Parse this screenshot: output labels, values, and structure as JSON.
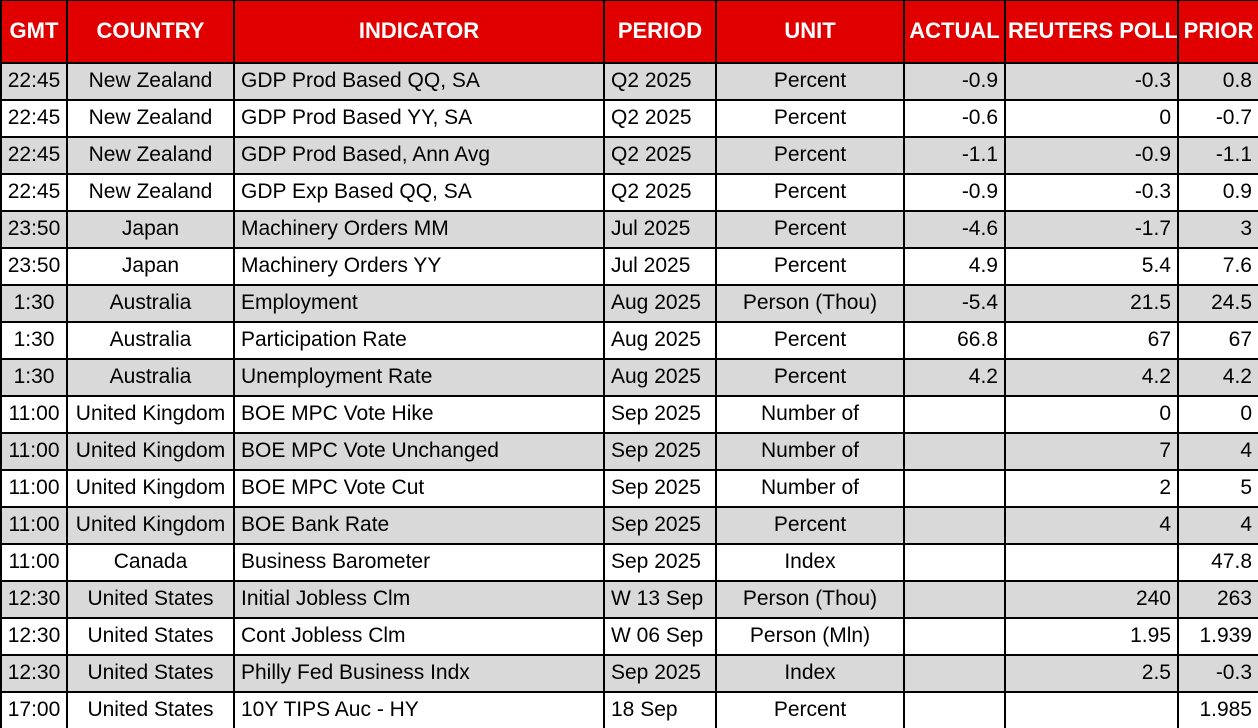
{
  "colors": {
    "header_bg": "#e00000",
    "header_text": "#ffffff",
    "row_stripe": "#d9d9d9",
    "row_bg": "#ffffff",
    "grid": "#000000",
    "text": "#000000"
  },
  "table": {
    "columns": [
      {
        "key": "gmt",
        "label": "GMT"
      },
      {
        "key": "country",
        "label": "COUNTRY"
      },
      {
        "key": "indicator",
        "label": "INDICATOR"
      },
      {
        "key": "period",
        "label": "PERIOD"
      },
      {
        "key": "unit",
        "label": "UNIT"
      },
      {
        "key": "actual",
        "label": "ACTUAL"
      },
      {
        "key": "reuters_poll",
        "label": "REUTERS POLL"
      },
      {
        "key": "prior",
        "label": "PRIOR"
      }
    ],
    "rows": [
      {
        "gmt": "22:45",
        "country": "New Zealand",
        "indicator": "GDP Prod Based QQ, SA",
        "period": "Q2 2025",
        "unit": "Percent",
        "actual": "-0.9",
        "reuters_poll": "-0.3",
        "prior": "0.8"
      },
      {
        "gmt": "22:45",
        "country": "New Zealand",
        "indicator": "GDP Prod Based YY, SA",
        "period": "Q2 2025",
        "unit": "Percent",
        "actual": "-0.6",
        "reuters_poll": "0",
        "prior": "-0.7"
      },
      {
        "gmt": "22:45",
        "country": "New Zealand",
        "indicator": "GDP Prod Based, Ann Avg",
        "period": "Q2 2025",
        "unit": "Percent",
        "actual": "-1.1",
        "reuters_poll": "-0.9",
        "prior": "-1.1"
      },
      {
        "gmt": "22:45",
        "country": "New Zealand",
        "indicator": "GDP Exp Based QQ, SA",
        "period": "Q2 2025",
        "unit": "Percent",
        "actual": "-0.9",
        "reuters_poll": "-0.3",
        "prior": "0.9"
      },
      {
        "gmt": "23:50",
        "country": "Japan",
        "indicator": "Machinery Orders MM",
        "period": "Jul 2025",
        "unit": "Percent",
        "actual": "-4.6",
        "reuters_poll": "-1.7",
        "prior": "3"
      },
      {
        "gmt": "23:50",
        "country": "Japan",
        "indicator": "Machinery Orders YY",
        "period": "Jul 2025",
        "unit": "Percent",
        "actual": "4.9",
        "reuters_poll": "5.4",
        "prior": "7.6"
      },
      {
        "gmt": "1:30",
        "country": "Australia",
        "indicator": "Employment",
        "period": "Aug 2025",
        "unit": "Person (Thou)",
        "actual": "-5.4",
        "reuters_poll": "21.5",
        "prior": "24.5"
      },
      {
        "gmt": "1:30",
        "country": "Australia",
        "indicator": "Participation Rate",
        "period": "Aug 2025",
        "unit": "Percent",
        "actual": "66.8",
        "reuters_poll": "67",
        "prior": "67"
      },
      {
        "gmt": "1:30",
        "country": "Australia",
        "indicator": "Unemployment Rate",
        "period": "Aug 2025",
        "unit": "Percent",
        "actual": "4.2",
        "reuters_poll": "4.2",
        "prior": "4.2"
      },
      {
        "gmt": "11:00",
        "country": "United Kingdom",
        "indicator": "BOE MPC Vote Hike",
        "period": "Sep 2025",
        "unit": "Number of",
        "actual": "",
        "reuters_poll": "0",
        "prior": "0"
      },
      {
        "gmt": "11:00",
        "country": "United Kingdom",
        "indicator": "BOE MPC Vote Unchanged",
        "period": "Sep 2025",
        "unit": "Number of",
        "actual": "",
        "reuters_poll": "7",
        "prior": "4"
      },
      {
        "gmt": "11:00",
        "country": "United Kingdom",
        "indicator": "BOE MPC Vote Cut",
        "period": "Sep 2025",
        "unit": "Number of",
        "actual": "",
        "reuters_poll": "2",
        "prior": "5"
      },
      {
        "gmt": "11:00",
        "country": "United Kingdom",
        "indicator": "BOE Bank Rate",
        "period": "Sep 2025",
        "unit": "Percent",
        "actual": "",
        "reuters_poll": "4",
        "prior": "4"
      },
      {
        "gmt": "11:00",
        "country": "Canada",
        "indicator": "Business Barometer",
        "period": "Sep 2025",
        "unit": "Index",
        "actual": "",
        "reuters_poll": "",
        "prior": "47.8"
      },
      {
        "gmt": "12:30",
        "country": "United States",
        "indicator": "Initial Jobless Clm",
        "period": "W 13 Sep",
        "unit": "Person (Thou)",
        "actual": "",
        "reuters_poll": "240",
        "prior": "263"
      },
      {
        "gmt": "12:30",
        "country": "United States",
        "indicator": "Cont Jobless Clm",
        "period": "W 06 Sep",
        "unit": "Person (Mln)",
        "actual": "",
        "reuters_poll": "1.95",
        "prior": "1.939"
      },
      {
        "gmt": "12:30",
        "country": "United States",
        "indicator": "Philly Fed Business Indx",
        "period": "Sep 2025",
        "unit": "Index",
        "actual": "",
        "reuters_poll": "2.5",
        "prior": "-0.3"
      },
      {
        "gmt": "17:00",
        "country": "United States",
        "indicator": "10Y TIPS Auc - HY",
        "period": "18 Sep",
        "unit": "Percent",
        "actual": "",
        "reuters_poll": "",
        "prior": "1.985"
      }
    ]
  }
}
